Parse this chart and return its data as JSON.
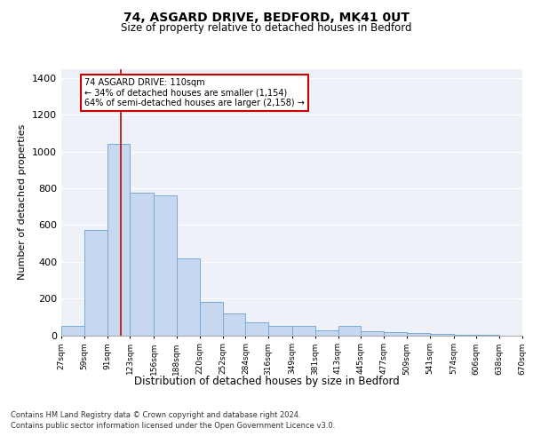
{
  "title_line1": "74, ASGARD DRIVE, BEDFORD, MK41 0UT",
  "title_line2": "Size of property relative to detached houses in Bedford",
  "xlabel": "Distribution of detached houses by size in Bedford",
  "ylabel": "Number of detached properties",
  "annotation_line1": "74 ASGARD DRIVE: 110sqm",
  "annotation_line2": "← 34% of detached houses are smaller (1,154)",
  "annotation_line3": "64% of semi-detached houses are larger (2,158) →",
  "property_size": 110,
  "footnote1": "Contains HM Land Registry data © Crown copyright and database right 2024.",
  "footnote2": "Contains public sector information licensed under the Open Government Licence v3.0.",
  "bar_color": "#c5d8ef",
  "bar_edge_color": "#7aaad4",
  "vline_color": "#cc0000",
  "background_color": "#eef2f8",
  "annotation_box_color": "#cc0000",
  "bins": [
    27,
    59,
    91,
    123,
    156,
    188,
    220,
    252,
    284,
    316,
    349,
    381,
    413,
    445,
    477,
    509,
    541,
    574,
    606,
    638,
    670
  ],
  "bin_labels": [
    "27sqm",
    "59sqm",
    "91sqm",
    "123sqm",
    "156sqm",
    "188sqm",
    "220sqm",
    "252sqm",
    "284sqm",
    "316sqm",
    "349sqm",
    "381sqm",
    "413sqm",
    "445sqm",
    "477sqm",
    "509sqm",
    "541sqm",
    "574sqm",
    "606sqm",
    "638sqm",
    "670sqm"
  ],
  "values": [
    50,
    575,
    1040,
    775,
    760,
    420,
    180,
    120,
    70,
    50,
    50,
    25,
    50,
    20,
    15,
    10,
    5,
    2,
    1,
    0
  ],
  "ylim": [
    0,
    1450
  ],
  "yticks": [
    0,
    200,
    400,
    600,
    800,
    1000,
    1200,
    1400
  ]
}
